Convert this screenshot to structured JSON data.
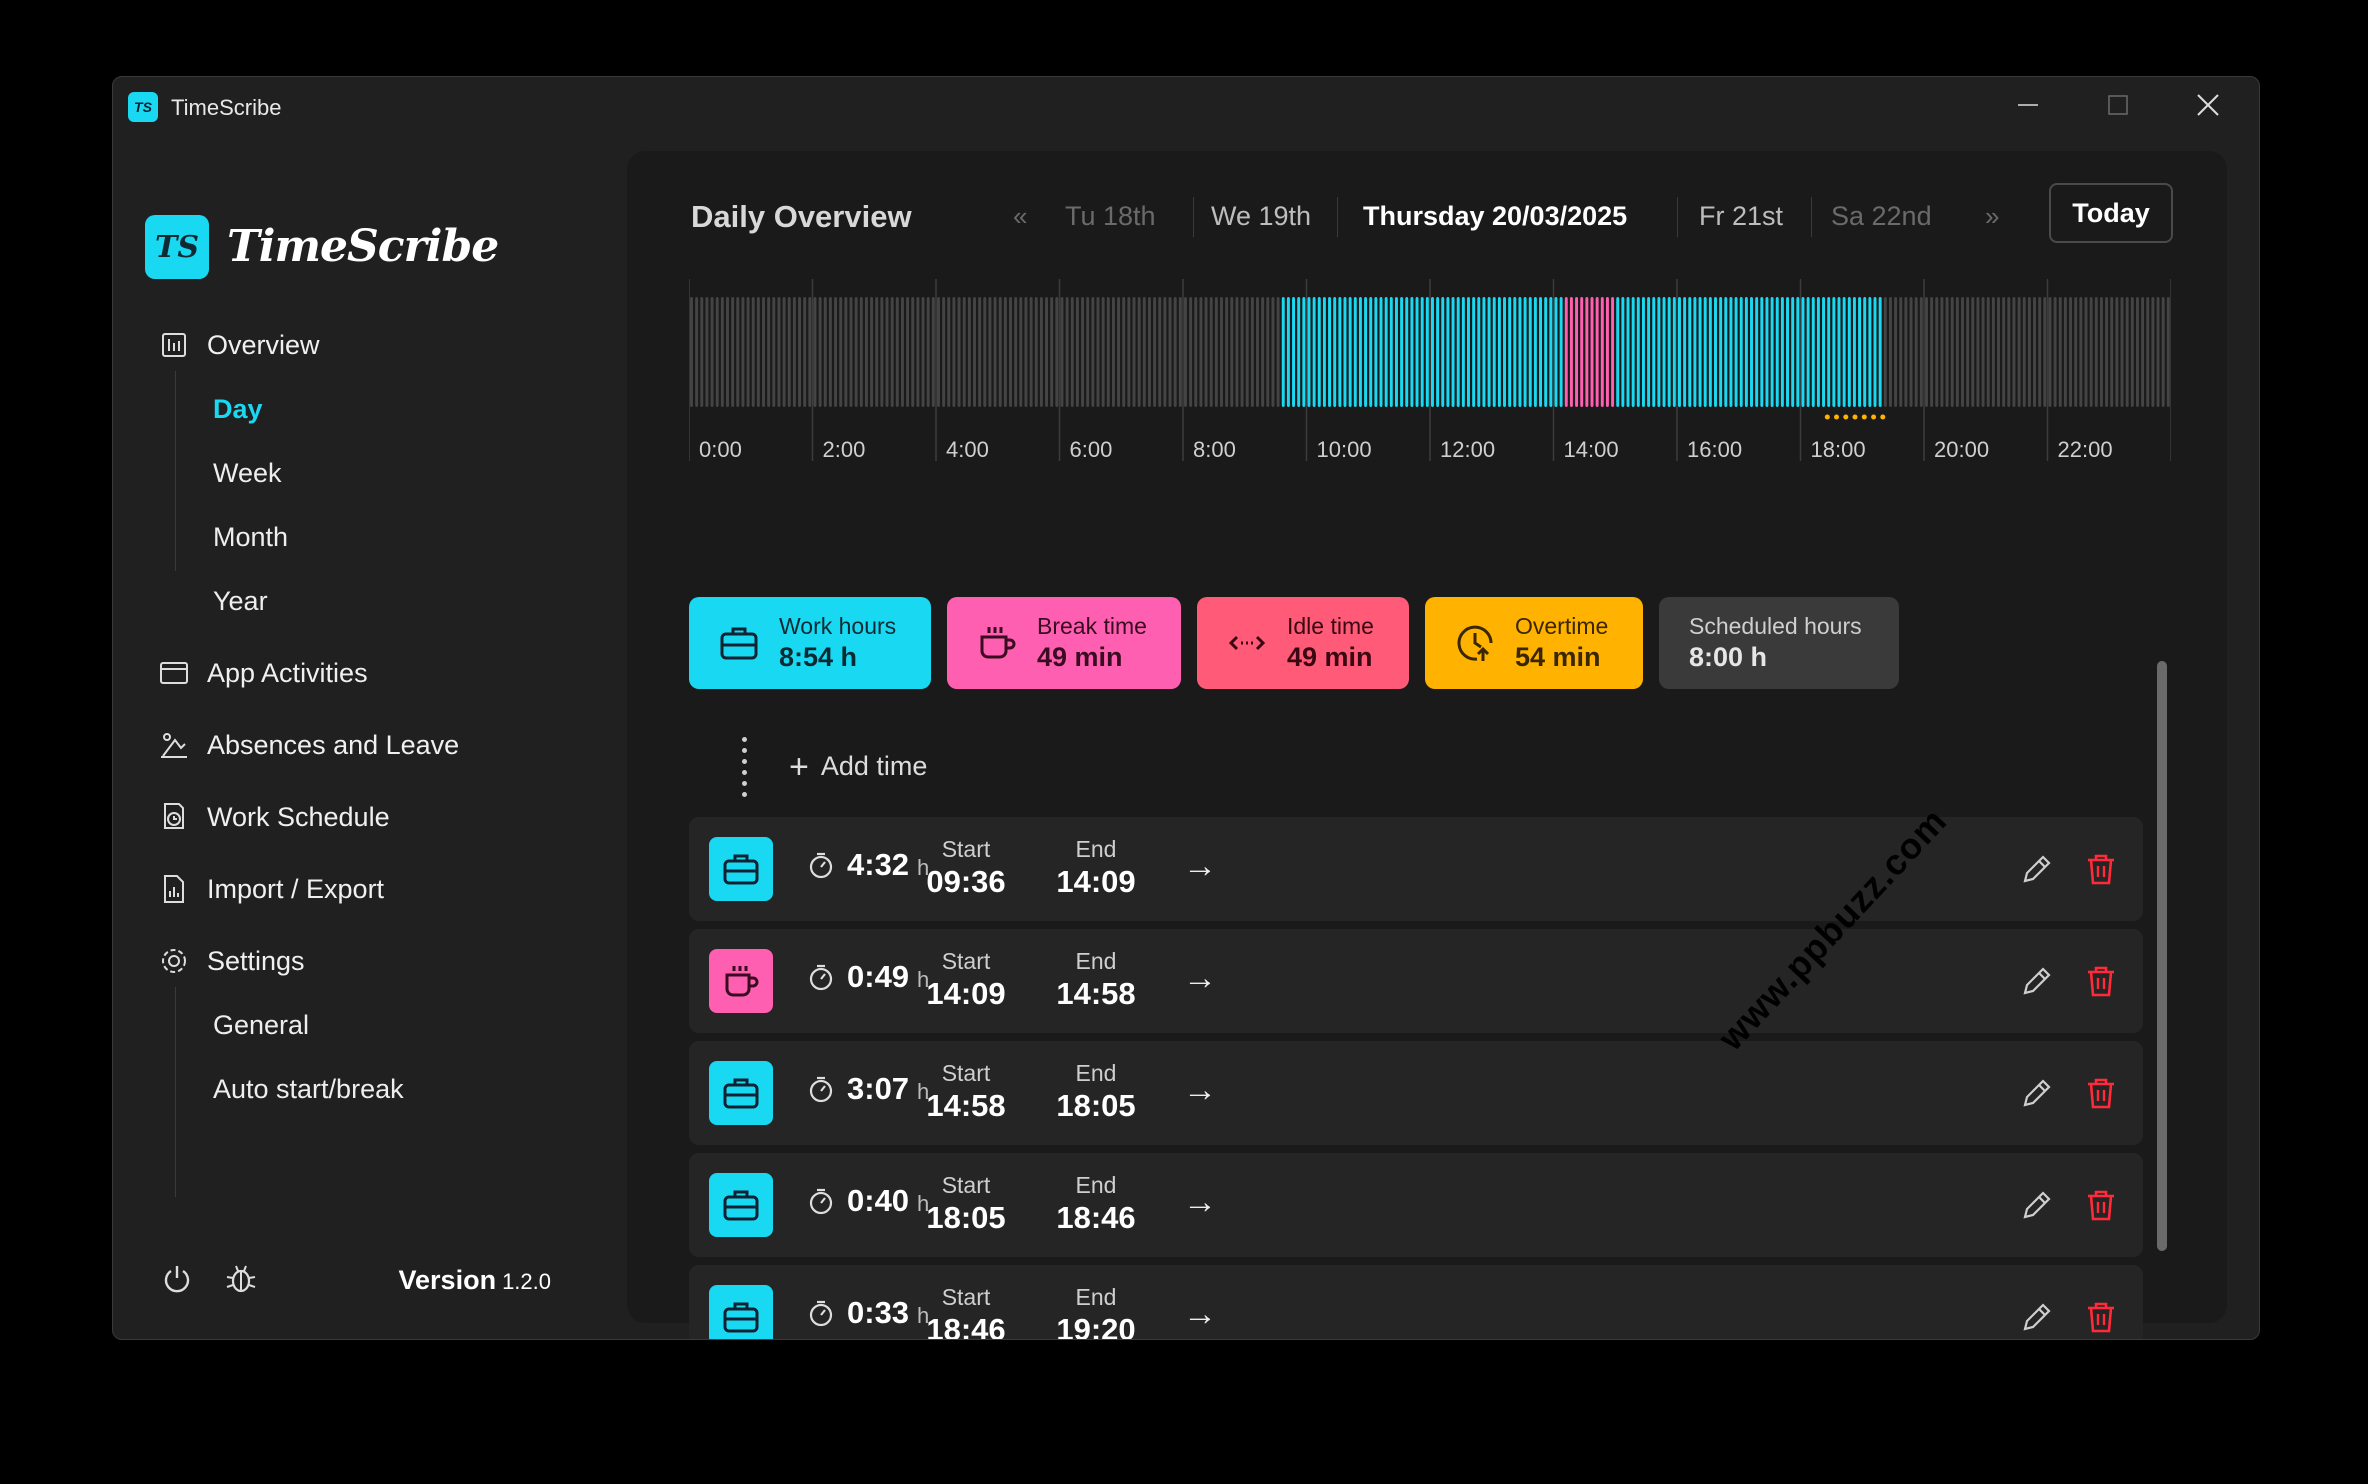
{
  "window": {
    "title": "TimeScribe",
    "logo": "TS"
  },
  "brand": {
    "logo": "TS",
    "name": "TimeScribe"
  },
  "nav": {
    "overview": "Overview",
    "overview_sub": [
      "Day",
      "Week",
      "Month",
      "Year"
    ],
    "app_activities": "App Activities",
    "absences": "Absences and Leave",
    "work_schedule": "Work Schedule",
    "import_export": "Import / Export",
    "settings": "Settings",
    "settings_sub": [
      "General",
      "Auto start/break"
    ]
  },
  "footer": {
    "version_label": "Version",
    "version": "1.2.0"
  },
  "header": {
    "title": "Daily Overview",
    "days": [
      "Tu 18th",
      "We 19th",
      "Thursday 20/03/2025",
      "Fr 21st",
      "Sa 22nd"
    ],
    "today": "Today"
  },
  "timeline": {
    "hour_labels": [
      "0:00",
      "2:00",
      "4:00",
      "6:00",
      "8:00",
      "10:00",
      "12:00",
      "14:00",
      "16:00",
      "18:00",
      "20:00",
      "22:00"
    ],
    "work_segments": [
      [
        "09:36",
        "14:09"
      ],
      [
        "14:58",
        "19:20"
      ]
    ],
    "break_segments": [
      [
        "14:09",
        "14:58"
      ]
    ],
    "overtime_segment": [
      "18:26",
      "19:20"
    ],
    "colors": {
      "work": "#19d9f2",
      "break": "#ff5fb0",
      "idle": "#444444",
      "overtime": "#ffb300"
    }
  },
  "stats": [
    {
      "label": "Work hours",
      "value": "8:54 h",
      "icon": "briefcase-icon",
      "color": "#19d9f2"
    },
    {
      "label": "Break time",
      "value": "49 min",
      "icon": "coffee-cup-icon",
      "color": "#ff5fb0"
    },
    {
      "label": "Idle time",
      "value": "49 min",
      "icon": "idle-arrows-icon",
      "color": "#ff5a78"
    },
    {
      "label": "Overtime",
      "value": "54 min",
      "icon": "clock-arrow-icon",
      "color": "#ffb300"
    },
    {
      "label": "Scheduled hours",
      "value": "8:00 h",
      "icon": "",
      "color": "#3a3a3a"
    }
  ],
  "add_time": "Add time",
  "entries": [
    {
      "type": "work",
      "duration": "4:32",
      "unit": "h",
      "start_label": "Start",
      "start": "09:36",
      "end_label": "End",
      "end": "14:09"
    },
    {
      "type": "break",
      "duration": "0:49",
      "unit": "h",
      "start_label": "Start",
      "start": "14:09",
      "end_label": "End",
      "end": "14:58"
    },
    {
      "type": "work",
      "duration": "3:07",
      "unit": "h",
      "start_label": "Start",
      "start": "14:58",
      "end_label": "End",
      "end": "18:05"
    },
    {
      "type": "work",
      "duration": "0:40",
      "unit": "h",
      "start_label": "Start",
      "start": "18:05",
      "end_label": "End",
      "end": "18:46"
    },
    {
      "type": "work",
      "duration": "0:33",
      "unit": "h",
      "start_label": "Start",
      "start": "18:46",
      "end_label": "End",
      "end": "19:20"
    }
  ],
  "watermark": "www.ppbuzz.com"
}
